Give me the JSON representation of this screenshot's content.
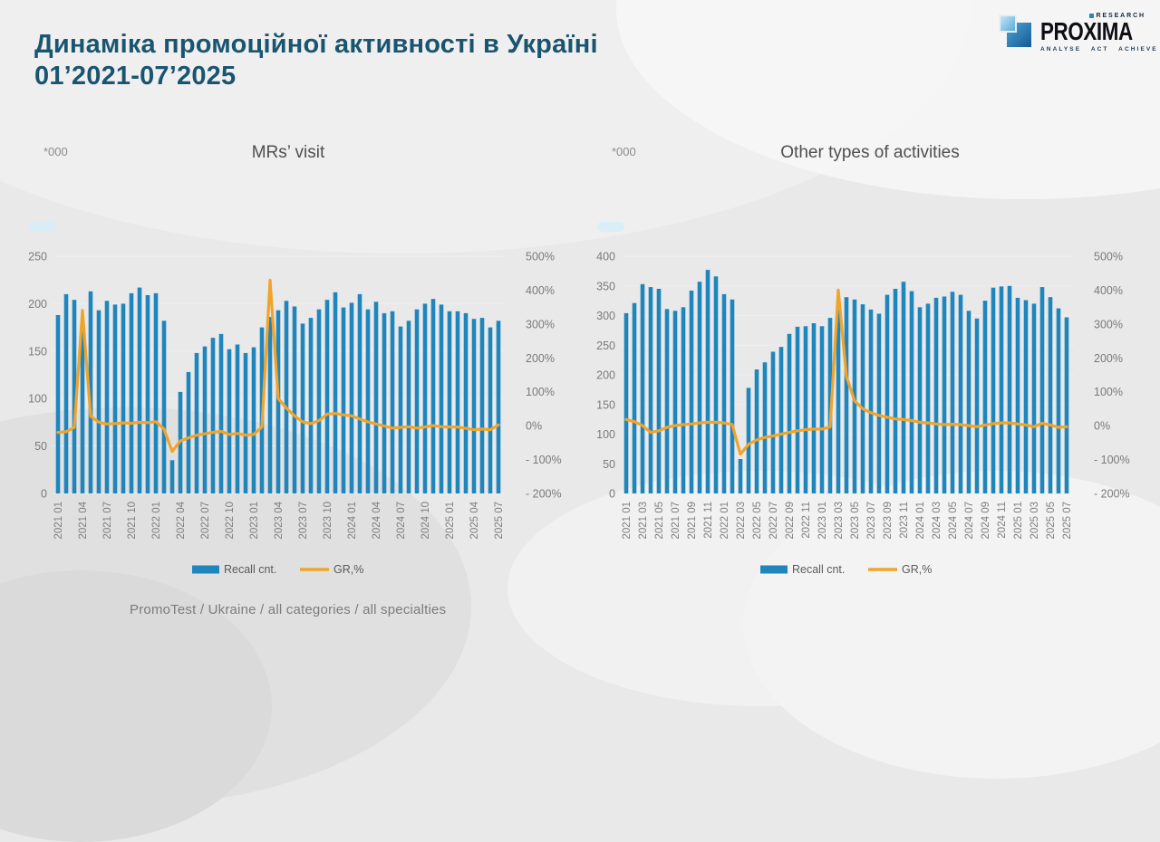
{
  "header": {
    "title_line1": "Динаміка промоційної активності в Україні",
    "title_line2": "01’2021-07’2025"
  },
  "logo": {
    "research": "RESEARCH",
    "brand": "PROXIMA",
    "tagline": "ANALYSE ACT ACHIEVE"
  },
  "footer": {
    "source": "PromoTest / Ukraine / all categories / all specialties"
  },
  "colors": {
    "bar": "#1f86bd",
    "line": "#f0a42c",
    "title": "#1a5570",
    "axis_text": "#7f7f7f",
    "grid": "#f1f1f1",
    "highlight_blob": "#d7edf9"
  },
  "chart_data": [
    {
      "type": "combo bar+line",
      "title": "MRs’ visit",
      "unit_label": "*000",
      "legend": [
        "Recall cnt.",
        "GR,%"
      ],
      "x_tick_every": 3,
      "left_axis": {
        "min": 0,
        "max": 250,
        "step": 50
      },
      "right_axis": {
        "min": -200,
        "max": 500,
        "step": 100,
        "suffix": "%"
      },
      "categories": [
        "2021 01",
        "2021 02",
        "2021 03",
        "2021 04",
        "2021 05",
        "2021 06",
        "2021 07",
        "2021 08",
        "2021 09",
        "2021 10",
        "2021 11",
        "2021 12",
        "2022 01",
        "2022 02",
        "2022 03",
        "2022 04",
        "2022 05",
        "2022 06",
        "2022 07",
        "2022 08",
        "2022 09",
        "2022 10",
        "2022 11",
        "2022 12",
        "2023 01",
        "2023 02",
        "2023 03",
        "2023 04",
        "2023 05",
        "2023 06",
        "2023 07",
        "2023 08",
        "2023 09",
        "2023 10",
        "2023 11",
        "2023 12",
        "2024 01",
        "2024 02",
        "2024 03",
        "2024 04",
        "2024 05",
        "2024 06",
        "2024 07",
        "2024 08",
        "2024 09",
        "2024 10",
        "2024 11",
        "2024 12",
        "2025 01",
        "2025 02",
        "2025 03",
        "2025 04",
        "2025 05",
        "2025 06",
        "2025 07"
      ],
      "series": [
        {
          "name": "Recall cnt.",
          "kind": "bar",
          "axis": "left",
          "values": [
            188,
            210,
            204,
            175,
            213,
            193,
            203,
            199,
            200,
            211,
            217,
            209,
            211,
            182,
            35,
            107,
            128,
            148,
            155,
            164,
            168,
            152,
            157,
            148,
            154,
            175,
            186,
            193,
            203,
            197,
            179,
            185,
            194,
            204,
            212,
            196,
            201,
            210,
            194,
            202,
            190,
            192,
            176,
            182,
            194,
            200,
            205,
            199,
            192,
            192,
            190,
            184,
            185,
            175,
            182
          ]
        },
        {
          "name": "GR,%",
          "kind": "line",
          "axis": "right",
          "values": [
            -20,
            -18,
            -5,
            340,
            28,
            10,
            5,
            6,
            8,
            7,
            10,
            9,
            12,
            -10,
            -76,
            -45,
            -36,
            -28,
            -24,
            -20,
            -17,
            -26,
            -23,
            -28,
            -26,
            -4,
            429,
            80,
            52,
            29,
            11,
            6,
            15,
            34,
            36,
            32,
            29,
            20,
            11,
            5,
            -1,
            -7,
            -5,
            -3,
            -7,
            -4,
            0,
            -3,
            -4,
            -4,
            -8,
            -12,
            -10,
            -12,
            2
          ]
        }
      ]
    },
    {
      "type": "combo bar+line",
      "title": "Other types of activities",
      "unit_label": "*000",
      "legend": [
        "Recall cnt.",
        "GR,%"
      ],
      "x_tick_every": 2,
      "left_axis": {
        "min": 0,
        "max": 400,
        "step": 50
      },
      "right_axis": {
        "min": -200,
        "max": 500,
        "step": 100,
        "suffix": "%"
      },
      "categories": [
        "2021 01",
        "2021 02",
        "2021 03",
        "2021 04",
        "2021 05",
        "2021 06",
        "2021 07",
        "2021 08",
        "2021 09",
        "2021 10",
        "2021 11",
        "2021 12",
        "2022 01",
        "2022 02",
        "2022 03",
        "2022 04",
        "2022 05",
        "2022 06",
        "2022 07",
        "2022 08",
        "2022 09",
        "2022 10",
        "2022 11",
        "2022 12",
        "2023 01",
        "2023 02",
        "2023 03",
        "2023 04",
        "2023 05",
        "2023 06",
        "2023 07",
        "2023 08",
        "2023 09",
        "2023 10",
        "2023 11",
        "2023 12",
        "2024 01",
        "2024 02",
        "2024 03",
        "2024 04",
        "2024 05",
        "2024 06",
        "2024 07",
        "2024 08",
        "2024 09",
        "2024 10",
        "2024 11",
        "2024 12",
        "2025 01",
        "2025 02",
        "2025 03",
        "2025 04",
        "2025 05",
        "2025 06",
        "2025 07"
      ],
      "series": [
        {
          "name": "Recall cnt.",
          "kind": "bar",
          "axis": "left",
          "values": [
            304,
            321,
            353,
            348,
            345,
            311,
            308,
            314,
            342,
            357,
            377,
            366,
            336,
            327,
            58,
            178,
            209,
            221,
            239,
            247,
            269,
            281,
            282,
            287,
            282,
            296,
            310,
            331,
            327,
            319,
            310,
            303,
            335,
            345,
            357,
            341,
            314,
            320,
            330,
            332,
            340,
            335,
            308,
            295,
            325,
            347,
            349,
            350,
            330,
            326,
            320,
            348,
            331,
            312,
            297
          ]
        },
        {
          "name": "GR,%",
          "kind": "line",
          "axis": "right",
          "values": [
            18,
            12,
            0,
            -20,
            -15,
            -5,
            0,
            3,
            5,
            8,
            10,
            10,
            8,
            3,
            -84,
            -55,
            -42,
            -35,
            -30,
            -25,
            -20,
            -15,
            -12,
            -10,
            -10,
            -4,
            400,
            145,
            73,
            50,
            38,
            30,
            25,
            20,
            18,
            15,
            10,
            8,
            5,
            3,
            4,
            3,
            0,
            -3,
            2,
            6,
            8,
            8,
            5,
            2,
            -3,
            7,
            2,
            -5,
            -3
          ]
        }
      ]
    }
  ]
}
